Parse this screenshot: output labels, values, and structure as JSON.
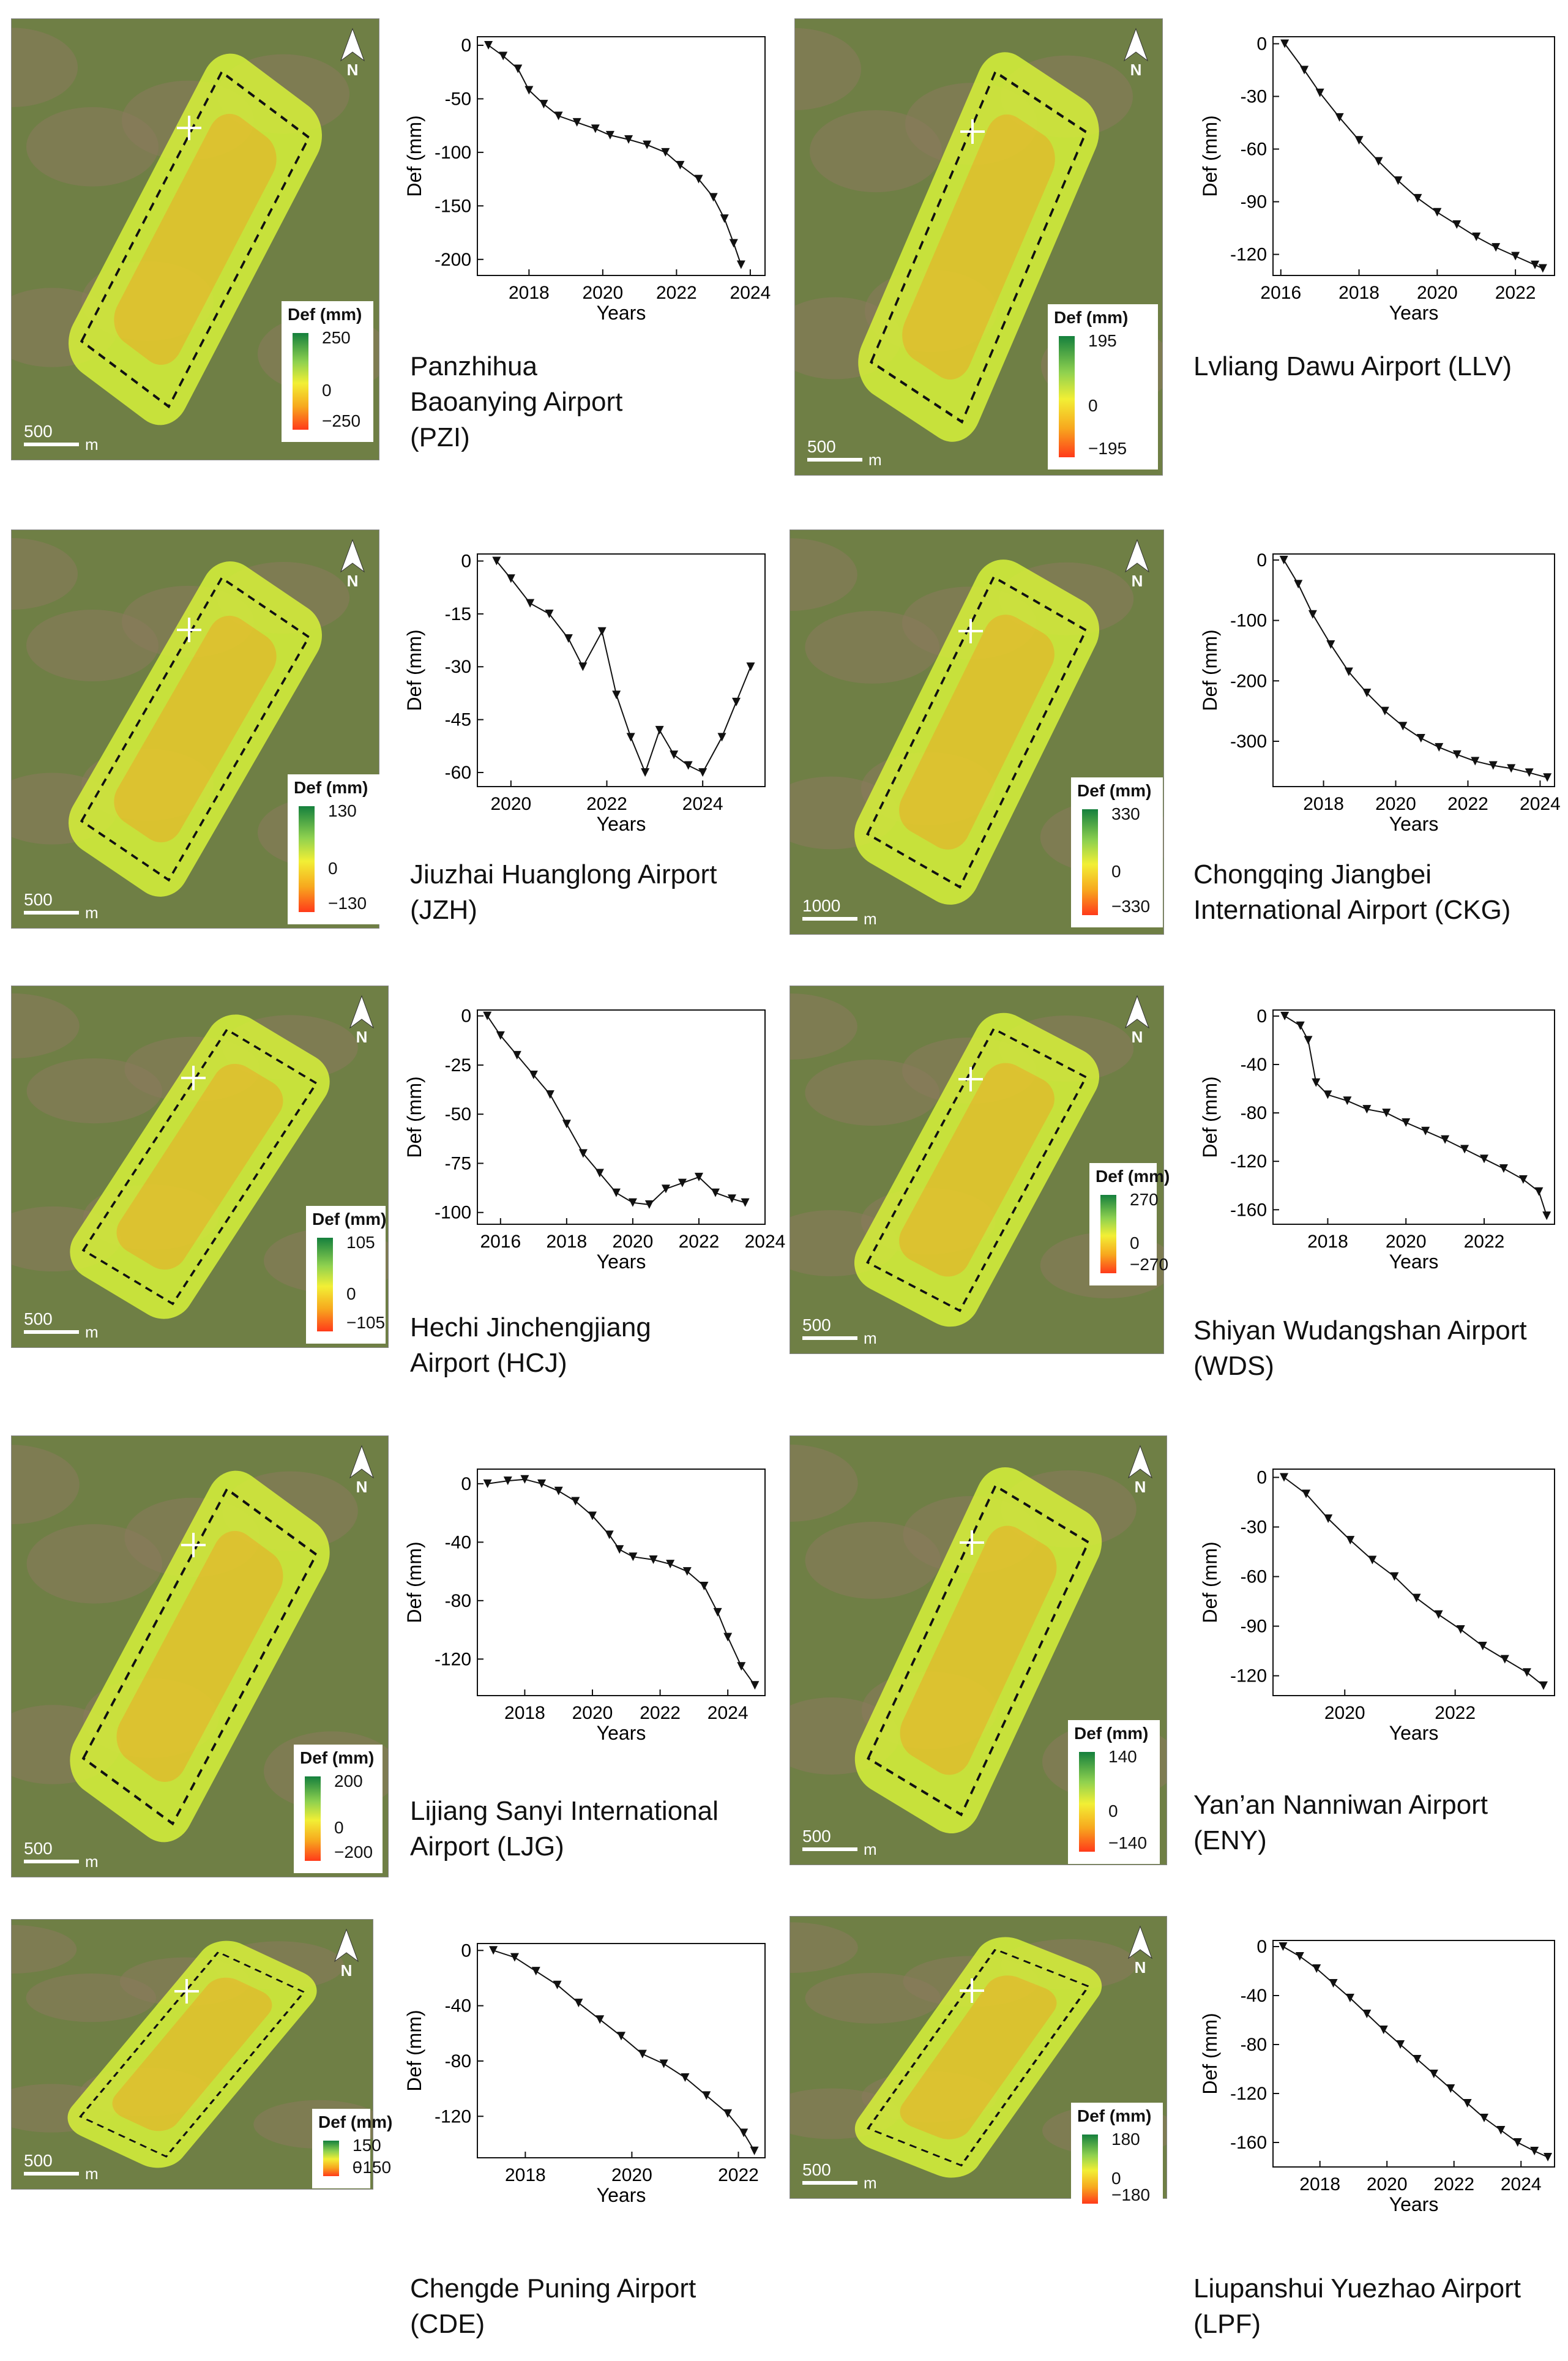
{
  "colorbar_title": "Def (mm)",
  "north_label": "N",
  "y_axis_label": "Def (mm)",
  "x_axis_label": "Years",
  "colors": {
    "vegetation": "#6f7f45",
    "terrain": "#8a7a5c",
    "stable": "#d7f23a",
    "subsiding": "#ff8a1a"
  },
  "airports": [
    {
      "name": "Panzhihua Baoanying Airport (PZI)",
      "scale_value": "500",
      "scale_unit": "m",
      "colorbar_max": "250",
      "colorbar_mid": "0",
      "colorbar_min": "−250"
    },
    {
      "name": "Lvliang Dawu Airport (LLV)",
      "scale_value": "500",
      "scale_unit": "m",
      "colorbar_max": "195",
      "colorbar_mid": "0",
      "colorbar_min": "−195"
    },
    {
      "name": "Jiuzhai Huanglong Airport (JZH)",
      "scale_value": "500",
      "scale_unit": "m",
      "colorbar_max": "130",
      "colorbar_mid": "0",
      "colorbar_min": "−130"
    },
    {
      "name": "Chongqing Jiangbei International Airport (CKG)",
      "scale_value": "1000",
      "scale_unit": "m",
      "colorbar_max": "330",
      "colorbar_mid": "0",
      "colorbar_min": "−330"
    },
    {
      "name": "Hechi Jinchengjiang Airport (HCJ)",
      "scale_value": "500",
      "scale_unit": "m",
      "colorbar_max": "105",
      "colorbar_mid": "0",
      "colorbar_min": "−105"
    },
    {
      "name": "Shiyan Wudangshan Airport (WDS)",
      "scale_value": "500",
      "scale_unit": "m",
      "colorbar_max": "270",
      "colorbar_mid": "0",
      "colorbar_min": "−270"
    },
    {
      "name": "Lijiang Sanyi International Airport (LJG)",
      "scale_value": "500",
      "scale_unit": "m",
      "colorbar_max": "200",
      "colorbar_mid": "0",
      "colorbar_min": "−200"
    },
    {
      "name": "Yan’an Nanniwan Airport (ENY)",
      "scale_value": "500",
      "scale_unit": "m",
      "colorbar_max": "140",
      "colorbar_mid": "0",
      "colorbar_min": "−140"
    },
    {
      "name": "Chengde Puning Airport (CDE)",
      "scale_value": "500",
      "scale_unit": "m",
      "colorbar_max": "150",
      "colorbar_mid": "0",
      "colorbar_min": "−150"
    },
    {
      "name": "Liupanshui Yuezhao Airport (LPF)",
      "scale_value": "500",
      "scale_unit": "m",
      "colorbar_max": "180",
      "colorbar_mid": "0",
      "colorbar_min": "−180"
    }
  ],
  "chart_data": [
    {
      "type": "line",
      "series": [
        {
          "values": [
            [
              2016.9,
              0
            ],
            [
              2017.3,
              -10
            ],
            [
              2017.7,
              -22
            ],
            [
              2018.0,
              -42
            ],
            [
              2018.4,
              -55
            ],
            [
              2018.8,
              -66
            ],
            [
              2019.3,
              -72
            ],
            [
              2019.8,
              -78
            ],
            [
              2020.2,
              -84
            ],
            [
              2020.7,
              -88
            ],
            [
              2021.2,
              -93
            ],
            [
              2021.7,
              -100
            ],
            [
              2022.1,
              -112
            ],
            [
              2022.6,
              -125
            ],
            [
              2023.0,
              -142
            ],
            [
              2023.3,
              -162
            ],
            [
              2023.55,
              -185
            ],
            [
              2023.75,
              -205
            ]
          ]
        }
      ],
      "xlim": [
        2016.6,
        2024.4
      ],
      "ylim": [
        -215,
        8
      ],
      "xticks": [
        2018,
        2020,
        2022,
        2024
      ],
      "yticks": [
        0,
        -50,
        -100,
        -150,
        -200
      ]
    },
    {
      "type": "line",
      "series": [
        {
          "values": [
            [
              2016.1,
              0
            ],
            [
              2016.6,
              -15
            ],
            [
              2017.0,
              -28
            ],
            [
              2017.5,
              -42
            ],
            [
              2018.0,
              -55
            ],
            [
              2018.5,
              -67
            ],
            [
              2019.0,
              -78
            ],
            [
              2019.5,
              -88
            ],
            [
              2020.0,
              -96
            ],
            [
              2020.5,
              -103
            ],
            [
              2021.0,
              -110
            ],
            [
              2021.5,
              -116
            ],
            [
              2022.0,
              -121
            ],
            [
              2022.5,
              -126
            ],
            [
              2022.7,
              -128
            ]
          ]
        }
      ],
      "xlim": [
        2015.8,
        2023.0
      ],
      "ylim": [
        -132,
        4
      ],
      "xticks": [
        2016,
        2018,
        2020,
        2022
      ],
      "yticks": [
        0,
        -30,
        -60,
        -90,
        -120
      ]
    },
    {
      "type": "line",
      "series": [
        {
          "values": [
            [
              2019.7,
              0
            ],
            [
              2020.0,
              -5
            ],
            [
              2020.4,
              -12
            ],
            [
              2020.8,
              -15
            ],
            [
              2021.2,
              -22
            ],
            [
              2021.5,
              -30
            ],
            [
              2021.9,
              -20
            ],
            [
              2022.2,
              -38
            ],
            [
              2022.5,
              -50
            ],
            [
              2022.8,
              -60
            ],
            [
              2023.1,
              -48
            ],
            [
              2023.4,
              -55
            ],
            [
              2023.7,
              -58
            ],
            [
              2024.0,
              -60
            ],
            [
              2024.4,
              -50
            ],
            [
              2024.7,
              -40
            ],
            [
              2025.0,
              -30
            ]
          ]
        }
      ],
      "xlim": [
        2019.3,
        2025.3
      ],
      "ylim": [
        -64,
        2
      ],
      "xticks": [
        2020,
        2022,
        2024
      ],
      "yticks": [
        0,
        -15,
        -30,
        -45,
        -60
      ]
    },
    {
      "type": "line",
      "series": [
        {
          "values": [
            [
              2016.9,
              0
            ],
            [
              2017.3,
              -40
            ],
            [
              2017.7,
              -90
            ],
            [
              2018.2,
              -140
            ],
            [
              2018.7,
              -185
            ],
            [
              2019.2,
              -220
            ],
            [
              2019.7,
              -250
            ],
            [
              2020.2,
              -275
            ],
            [
              2020.7,
              -295
            ],
            [
              2021.2,
              -310
            ],
            [
              2021.7,
              -322
            ],
            [
              2022.2,
              -333
            ],
            [
              2022.7,
              -340
            ],
            [
              2023.2,
              -345
            ],
            [
              2023.7,
              -352
            ],
            [
              2024.2,
              -360
            ]
          ]
        }
      ],
      "xlim": [
        2016.6,
        2024.4
      ],
      "ylim": [
        -375,
        10
      ],
      "xticks": [
        2018,
        2020,
        2022,
        2024
      ],
      "yticks": [
        0,
        -100,
        -200,
        -300
      ]
    },
    {
      "type": "line",
      "series": [
        {
          "values": [
            [
              2015.6,
              0
            ],
            [
              2016.0,
              -10
            ],
            [
              2016.5,
              -20
            ],
            [
              2017.0,
              -30
            ],
            [
              2017.5,
              -40
            ],
            [
              2018.0,
              -55
            ],
            [
              2018.5,
              -70
            ],
            [
              2019.0,
              -80
            ],
            [
              2019.5,
              -90
            ],
            [
              2020.0,
              -95
            ],
            [
              2020.5,
              -96
            ],
            [
              2021.0,
              -88
            ],
            [
              2021.5,
              -85
            ],
            [
              2022.0,
              -82
            ],
            [
              2022.5,
              -90
            ],
            [
              2023.0,
              -93
            ],
            [
              2023.4,
              -95
            ]
          ]
        }
      ],
      "xlim": [
        2015.3,
        2024.0
      ],
      "ylim": [
        -106,
        3
      ],
      "xticks": [
        2016,
        2018,
        2020,
        2022,
        2024
      ],
      "yticks": [
        0,
        -25,
        -50,
        -75,
        -100
      ]
    },
    {
      "type": "line",
      "series": [
        {
          "values": [
            [
              2016.9,
              0
            ],
            [
              2017.3,
              -8
            ],
            [
              2017.5,
              -20
            ],
            [
              2017.7,
              -55
            ],
            [
              2018.0,
              -65
            ],
            [
              2018.5,
              -70
            ],
            [
              2019.0,
              -77
            ],
            [
              2019.5,
              -80
            ],
            [
              2020.0,
              -88
            ],
            [
              2020.5,
              -95
            ],
            [
              2021.0,
              -102
            ],
            [
              2021.5,
              -110
            ],
            [
              2022.0,
              -118
            ],
            [
              2022.5,
              -126
            ],
            [
              2023.0,
              -135
            ],
            [
              2023.4,
              -145
            ],
            [
              2023.6,
              -165
            ]
          ]
        }
      ],
      "xlim": [
        2016.6,
        2023.8
      ],
      "ylim": [
        -172,
        5
      ],
      "xticks": [
        2018,
        2020,
        2022
      ],
      "yticks": [
        0,
        -40,
        -80,
        -120,
        -160
      ]
    },
    {
      "type": "line",
      "series": [
        {
          "values": [
            [
              2016.9,
              0
            ],
            [
              2017.5,
              2
            ],
            [
              2018.0,
              3
            ],
            [
              2018.5,
              0
            ],
            [
              2019.0,
              -5
            ],
            [
              2019.5,
              -12
            ],
            [
              2020.0,
              -22
            ],
            [
              2020.5,
              -35
            ],
            [
              2020.8,
              -45
            ],
            [
              2021.2,
              -50
            ],
            [
              2021.8,
              -52
            ],
            [
              2022.3,
              -55
            ],
            [
              2022.8,
              -60
            ],
            [
              2023.3,
              -70
            ],
            [
              2023.7,
              -88
            ],
            [
              2024.0,
              -105
            ],
            [
              2024.4,
              -125
            ],
            [
              2024.8,
              -138
            ]
          ]
        }
      ],
      "xlim": [
        2016.6,
        2025.1
      ],
      "ylim": [
        -145,
        10
      ],
      "xticks": [
        2018,
        2020,
        2022,
        2024
      ],
      "yticks": [
        0,
        -40,
        -80,
        -120
      ]
    },
    {
      "type": "line",
      "series": [
        {
          "values": [
            [
              2018.9,
              0
            ],
            [
              2019.3,
              -10
            ],
            [
              2019.7,
              -25
            ],
            [
              2020.1,
              -38
            ],
            [
              2020.5,
              -50
            ],
            [
              2020.9,
              -60
            ],
            [
              2021.3,
              -73
            ],
            [
              2021.7,
              -83
            ],
            [
              2022.1,
              -92
            ],
            [
              2022.5,
              -102
            ],
            [
              2022.9,
              -110
            ],
            [
              2023.3,
              -118
            ],
            [
              2023.6,
              -126
            ]
          ]
        }
      ],
      "xlim": [
        2018.7,
        2023.8
      ],
      "ylim": [
        -132,
        5
      ],
      "xticks": [
        2020,
        2022
      ],
      "yticks": [
        0,
        -30,
        -60,
        -90,
        -120
      ]
    },
    {
      "type": "line",
      "series": [
        {
          "values": [
            [
              2017.4,
              0
            ],
            [
              2017.8,
              -5
            ],
            [
              2018.2,
              -15
            ],
            [
              2018.6,
              -25
            ],
            [
              2019.0,
              -38
            ],
            [
              2019.4,
              -50
            ],
            [
              2019.8,
              -62
            ],
            [
              2020.2,
              -75
            ],
            [
              2020.6,
              -82
            ],
            [
              2021.0,
              -92
            ],
            [
              2021.4,
              -105
            ],
            [
              2021.8,
              -118
            ],
            [
              2022.1,
              -132
            ],
            [
              2022.3,
              -145
            ]
          ]
        }
      ],
      "xlim": [
        2017.1,
        2022.5
      ],
      "ylim": [
        -150,
        5
      ],
      "xticks": [
        2018,
        2020,
        2022
      ],
      "yticks": [
        0,
        -40,
        -80,
        -120
      ]
    },
    {
      "type": "line",
      "series": [
        {
          "values": [
            [
              2016.9,
              0
            ],
            [
              2017.4,
              -8
            ],
            [
              2017.9,
              -18
            ],
            [
              2018.4,
              -30
            ],
            [
              2018.9,
              -42
            ],
            [
              2019.4,
              -55
            ],
            [
              2019.9,
              -68
            ],
            [
              2020.4,
              -80
            ],
            [
              2020.9,
              -92
            ],
            [
              2021.4,
              -104
            ],
            [
              2021.9,
              -116
            ],
            [
              2022.4,
              -128
            ],
            [
              2022.9,
              -140
            ],
            [
              2023.4,
              -150
            ],
            [
              2023.9,
              -160
            ],
            [
              2024.4,
              -167
            ],
            [
              2024.8,
              -172
            ]
          ]
        }
      ],
      "xlim": [
        2016.6,
        2025.0
      ],
      "ylim": [
        -180,
        5
      ],
      "xticks": [
        2018,
        2020,
        2022,
        2024
      ],
      "yticks": [
        0,
        -40,
        -80,
        -120,
        -160
      ]
    }
  ]
}
